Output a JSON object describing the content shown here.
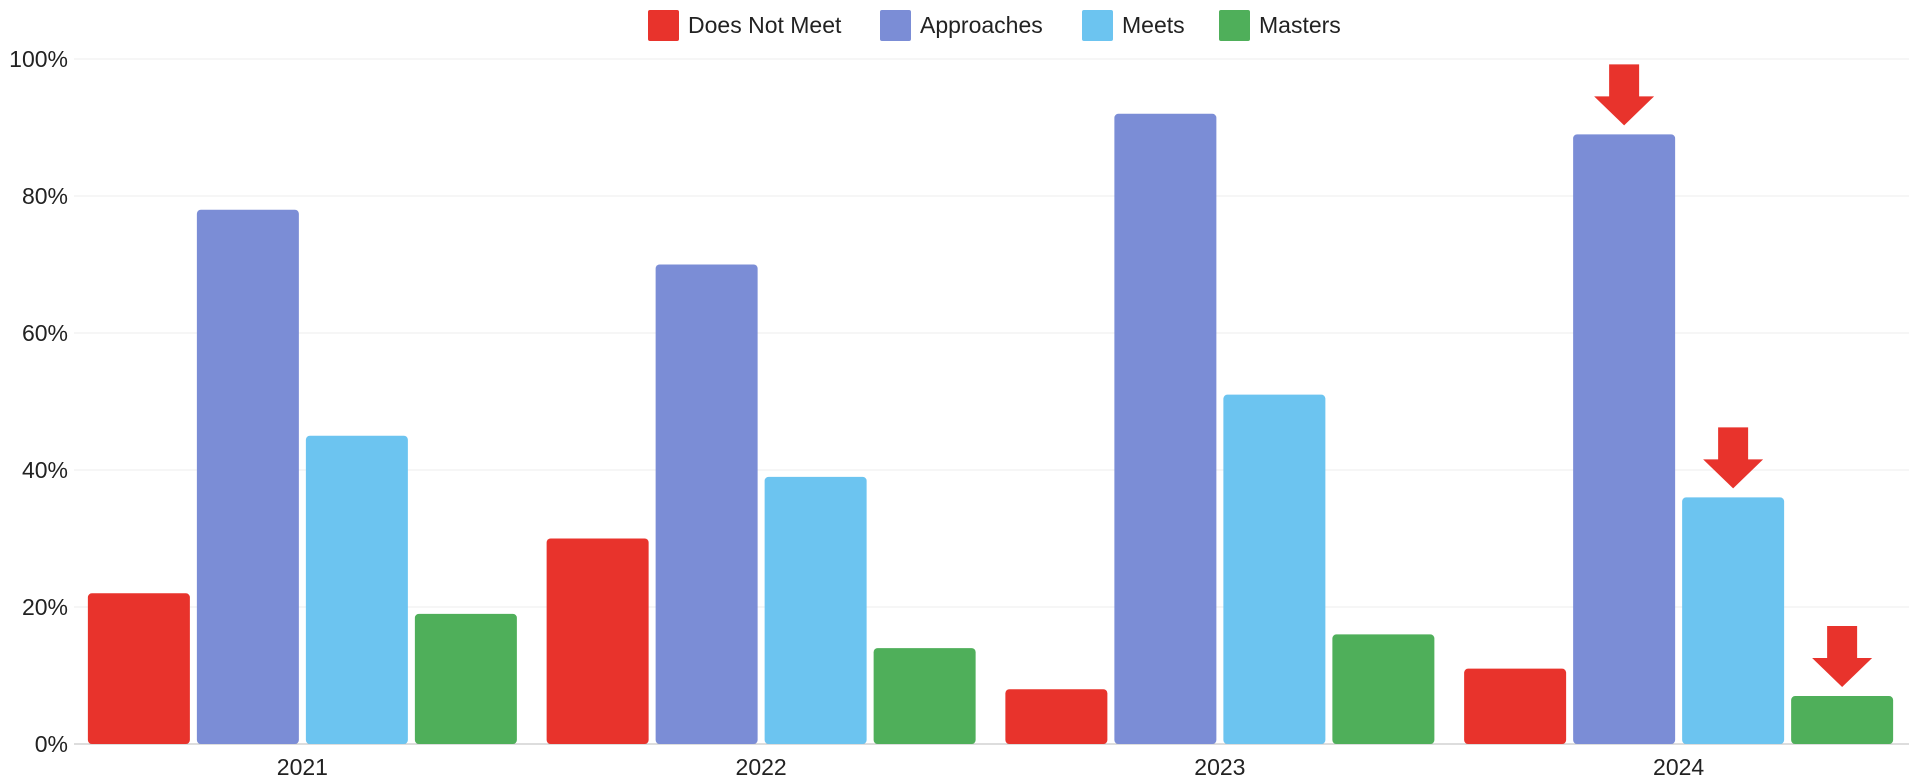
{
  "chart_data": {
    "type": "bar",
    "categories": [
      "2021",
      "2022",
      "2023",
      "2024"
    ],
    "series": [
      {
        "name": "Does Not Meet",
        "color": "#e8332c",
        "values": [
          22,
          30,
          8,
          11
        ]
      },
      {
        "name": "Approaches",
        "color": "#7b8dd6",
        "values": [
          78,
          70,
          92,
          89
        ]
      },
      {
        "name": "Meets",
        "color": "#6cc4f0",
        "values": [
          45,
          39,
          51,
          36
        ]
      },
      {
        "name": "Masters",
        "color": "#4faf5a",
        "values": [
          19,
          14,
          16,
          7
        ]
      }
    ],
    "ylim": [
      0,
      100
    ],
    "yticks": [
      "0%",
      "20%",
      "40%",
      "60%",
      "80%",
      "100%"
    ],
    "ytick_values": [
      0,
      20,
      40,
      60,
      80,
      100
    ],
    "grid": true,
    "legend_position": "top-center",
    "annotations": [
      {
        "type": "down-arrow",
        "color": "#e8332c",
        "category": "2024",
        "series": "Approaches"
      },
      {
        "type": "down-arrow",
        "color": "#e8332c",
        "category": "2024",
        "series": "Meets"
      },
      {
        "type": "down-arrow",
        "color": "#e8332c",
        "category": "2024",
        "series": "Masters"
      }
    ]
  }
}
